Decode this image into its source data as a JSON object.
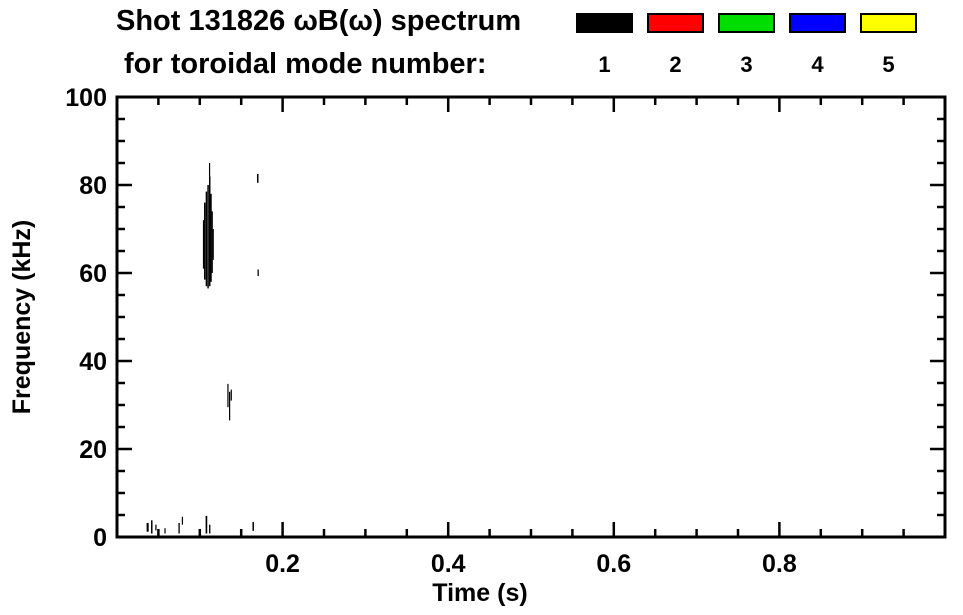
{
  "header": {
    "title_line1": "Shot 131826 ωB(ω) spectrum",
    "title_line2": "for toroidal mode number:"
  },
  "legend": {
    "modes": [
      {
        "label": "1",
        "color": "#000000"
      },
      {
        "label": "2",
        "color": "#ff0000"
      },
      {
        "label": "3",
        "color": "#00dd00"
      },
      {
        "label": "4",
        "color": "#0000ff"
      },
      {
        "label": "5",
        "color": "#ffff00"
      }
    ]
  },
  "chart_data": {
    "type": "scatter",
    "title": "Shot 131826 ωB(ω) spectrum",
    "subtitle": "for toroidal mode number: 1 2 3 4 5",
    "xlabel": "Time (s)",
    "ylabel": "Frequency (kHz)",
    "xlim": [
      0.0,
      1.0
    ],
    "ylim": [
      0,
      100
    ],
    "grid": false,
    "legend_position": "top-right",
    "x_major_ticks": [
      {
        "value": 0.2,
        "label": "0.2"
      },
      {
        "value": 0.4,
        "label": "0.4"
      },
      {
        "value": 0.6,
        "label": "0.6"
      },
      {
        "value": 0.8,
        "label": "0.8"
      }
    ],
    "y_major_ticks": [
      {
        "value": 0,
        "label": "0"
      },
      {
        "value": 20,
        "label": "20"
      },
      {
        "value": 40,
        "label": "40"
      },
      {
        "value": 60,
        "label": "60"
      },
      {
        "value": 80,
        "label": "80"
      },
      {
        "value": 100,
        "label": "100"
      }
    ],
    "x_minor_interval": 0.05,
    "y_minor_interval": 5,
    "series": [
      {
        "name": "toroidal mode n=1",
        "color": "#000000",
        "marker": "vertical-segment",
        "segments": [
          {
            "t": 0.1045,
            "f0": 61.0,
            "f1": 72.0,
            "w": 0.0015
          },
          {
            "t": 0.106,
            "f0": 58.5,
            "f1": 76.0,
            "w": 0.0018
          },
          {
            "t": 0.108,
            "f0": 57.0,
            "f1": 78.5,
            "w": 0.0018
          },
          {
            "t": 0.11,
            "f0": 56.5,
            "f1": 80.0,
            "w": 0.0018
          },
          {
            "t": 0.112,
            "f0": 57.0,
            "f1": 82.0,
            "w": 0.0018
          },
          {
            "t": 0.1118,
            "f0": 82.0,
            "f1": 85.0,
            "w": 0.001
          },
          {
            "t": 0.1135,
            "f0": 58.0,
            "f1": 78.0,
            "w": 0.0018
          },
          {
            "t": 0.115,
            "f0": 60.0,
            "f1": 74.0,
            "w": 0.0015
          },
          {
            "t": 0.1162,
            "f0": 63.0,
            "f1": 70.0,
            "w": 0.0012
          },
          {
            "t": 0.17,
            "f0": 80.5,
            "f1": 82.5,
            "w": 0.0018
          },
          {
            "t": 0.1705,
            "f0": 59.3,
            "f1": 60.8,
            "w": 0.0015
          },
          {
            "t": 0.134,
            "f0": 29.5,
            "f1": 34.8,
            "w": 0.0013
          },
          {
            "t": 0.136,
            "f0": 26.5,
            "f1": 33.0,
            "w": 0.0013
          },
          {
            "t": 0.138,
            "f0": 31.0,
            "f1": 33.5,
            "w": 0.001
          },
          {
            "t": 0.037,
            "f0": 1.2,
            "f1": 3.2,
            "w": 0.0025
          },
          {
            "t": 0.042,
            "f0": 0.8,
            "f1": 3.8,
            "w": 0.0018
          },
          {
            "t": 0.047,
            "f0": 1.5,
            "f1": 2.8,
            "w": 0.0015
          },
          {
            "t": 0.058,
            "f0": 0.8,
            "f1": 2.0,
            "w": 0.0013
          },
          {
            "t": 0.075,
            "f0": 0.8,
            "f1": 3.2,
            "w": 0.0016
          },
          {
            "t": 0.079,
            "f0": 2.8,
            "f1": 4.6,
            "w": 0.0013
          },
          {
            "t": 0.108,
            "f0": 0.8,
            "f1": 4.8,
            "w": 0.002
          },
          {
            "t": 0.112,
            "f0": 0.8,
            "f1": 2.8,
            "w": 0.0016
          },
          {
            "t": 0.1645,
            "f0": 1.4,
            "f1": 3.4,
            "w": 0.0018
          }
        ]
      },
      {
        "name": "toroidal mode n=2",
        "color": "#ff0000",
        "marker": "vertical-segment",
        "segments": []
      },
      {
        "name": "toroidal mode n=3",
        "color": "#00dd00",
        "marker": "vertical-segment",
        "segments": []
      },
      {
        "name": "toroidal mode n=4",
        "color": "#0000ff",
        "marker": "vertical-segment",
        "segments": []
      },
      {
        "name": "toroidal mode n=5",
        "color": "#ffff00",
        "marker": "vertical-segment",
        "segments": []
      }
    ]
  }
}
